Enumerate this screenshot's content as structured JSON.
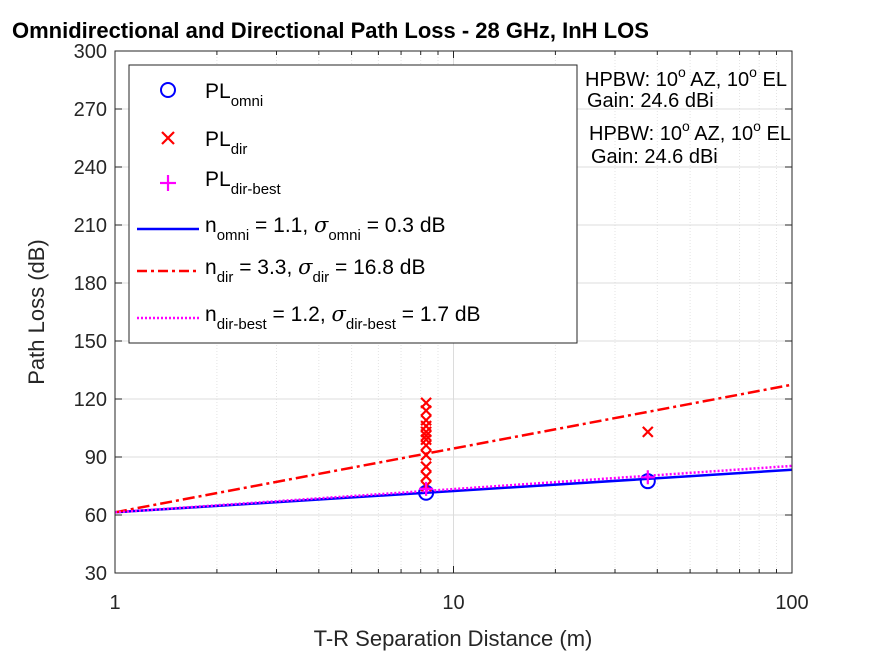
{
  "chart_data": {
    "type": "scatter",
    "title": "Omnidirectional and Directional Path Loss - 28 GHz, InH LOS",
    "xlabel": "T-R Separation Distance (m)",
    "ylabel": "Path Loss (dB)",
    "xscale": "log",
    "xlim": [
      1,
      100
    ],
    "ylim": [
      30,
      300
    ],
    "xticks": [
      1,
      10,
      100
    ],
    "xtick_labels": [
      "1",
      "10",
      "100"
    ],
    "yticks": [
      30,
      60,
      90,
      120,
      150,
      180,
      210,
      240,
      270,
      300
    ],
    "ytick_labels": [
      "30",
      "60",
      "90",
      "120",
      "150",
      "180",
      "210",
      "240",
      "270",
      "300"
    ],
    "grid": true,
    "legend_position": "top-left",
    "series": [
      {
        "name": "PL_omni",
        "legend_main": "PL",
        "legend_sub": "omni",
        "kind": "scatter",
        "marker": "circle",
        "color": "#0000ff",
        "x": [
          8.3,
          37.5
        ],
        "y": [
          71.5,
          77.5
        ]
      },
      {
        "name": "PL_dir",
        "legend_main": "PL",
        "legend_sub": "dir",
        "kind": "scatter",
        "marker": "x",
        "color": "#ff0000",
        "x": [
          8.3,
          8.3,
          8.3,
          8.3,
          8.3,
          8.3,
          8.3,
          8.3,
          8.3,
          8.3,
          8.3,
          8.3,
          37.5
        ],
        "y": [
          118,
          114,
          109,
          106,
          103,
          101,
          99,
          96,
          91,
          85,
          80,
          75,
          103
        ]
      },
      {
        "name": "PL_dir-best",
        "legend_main": "PL",
        "legend_sub": "dir-best",
        "kind": "scatter",
        "marker": "plus",
        "color": "#ff00ff",
        "x": [
          8.3,
          37.5
        ],
        "y": [
          73.5,
          79.5
        ]
      },
      {
        "kind": "line",
        "style": "solid",
        "color": "#0000ff",
        "d0": 1,
        "pl0": 61.4,
        "n": 1.1,
        "legend_parts": [
          "n",
          "omni",
          " = 1.1, ",
          "σ",
          "omni",
          " = 0.3 dB"
        ]
      },
      {
        "kind": "line",
        "style": "dashdot",
        "color": "#ff0000",
        "d0": 1,
        "pl0": 61.4,
        "n": 3.3,
        "legend_parts": [
          "n",
          "dir",
          " = 3.3, ",
          "σ",
          "dir",
          " = 16.8 dB"
        ]
      },
      {
        "kind": "line",
        "style": "dotted",
        "color": "#ff00ff",
        "d0": 1,
        "pl0": 61.4,
        "n": 1.2,
        "legend_parts": [
          "n",
          "dir-best",
          " = 1.2, ",
          "σ",
          "dir-best",
          " = 1.7 dB"
        ]
      }
    ],
    "annotations": [
      {
        "hpbw_prefix": "HPBW: 10",
        "sup1": "o",
        "mid": " AZ, 10",
        "sup2": "o",
        "suffix": " EL",
        "gain": "Gain: 24.6 dBi"
      },
      {
        "hpbw_prefix": "HPBW: 10",
        "sup1": "o",
        "mid": " AZ, 10",
        "sup2": "o",
        "suffix": " EL",
        "gain": "Gain: 24.6 dBi"
      }
    ]
  }
}
